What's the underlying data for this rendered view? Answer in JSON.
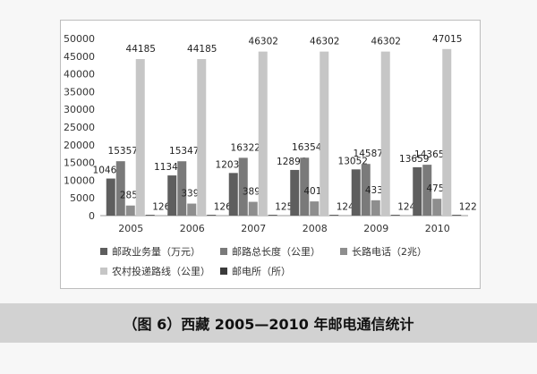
{
  "caption": "（图 6）西藏 2005—2010 年邮电通信统计",
  "chart_data": {
    "type": "bar",
    "categories": [
      "2005",
      "2006",
      "2007",
      "2008",
      "2009",
      "2010"
    ],
    "ylim": [
      0,
      50000
    ],
    "yticks": [
      0,
      5000,
      10000,
      15000,
      20000,
      25000,
      30000,
      35000,
      40000,
      45000,
      50000
    ],
    "grid": false,
    "legend_position": "bottom",
    "series": [
      {
        "name": "邮政业务量（万元）",
        "color": "#5e5e5e",
        "values": [
          10466,
          11346,
          12036,
          12896,
          13052,
          13659
        ]
      },
      {
        "name": "邮路总长度（公里）",
        "color": "#7a7a7a",
        "values": [
          15357,
          15347,
          16322,
          16354,
          14587,
          14365
        ]
      },
      {
        "name": "长路电话（2兆）",
        "color": "#8e8e8e",
        "values": [
          2852,
          3395,
          3896,
          4012,
          4335,
          4759
        ]
      },
      {
        "name": "农村投递路线（公里）",
        "color": "#c6c6c6",
        "values": [
          44185,
          44185,
          46302,
          46302,
          46302,
          47015
        ]
      },
      {
        "name": "邮电所（所）",
        "color": "#3a3a3a",
        "values": [
          126,
          126,
          125,
          124,
          124,
          122
        ]
      }
    ]
  }
}
